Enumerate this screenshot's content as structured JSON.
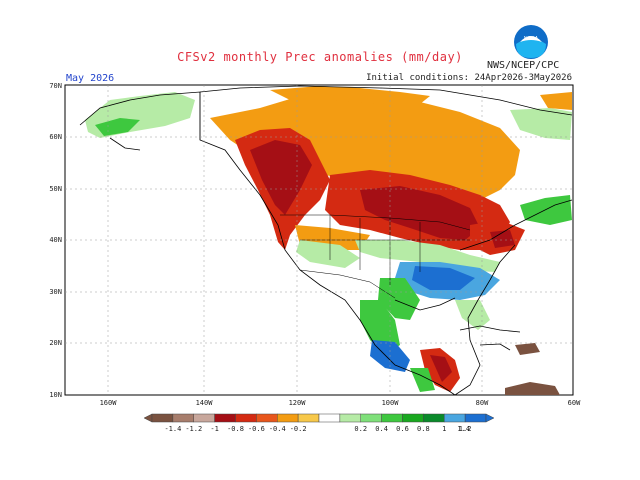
{
  "title": "CFSv2 monthly Prec anomalies (mm/day)",
  "month": "May 2026",
  "initial_conditions": "Initial conditions: 24Apr2026-3May2026",
  "agency": "NWS/NCEP/CPC",
  "logo_icon": "noaa-logo-icon",
  "lat_labels": [
    "70N",
    "60N",
    "50N",
    "40N",
    "30N",
    "20N",
    "10N"
  ],
  "lon_labels": [
    "160W",
    "140W",
    "120W",
    "100W",
    "80W",
    "60W"
  ],
  "colorbar": {
    "labels": [
      "-1.4",
      "-1.2",
      "-1",
      "-0.8",
      "-0.6",
      "-0.4",
      "-0.2",
      "0.2",
      "0.4",
      "0.6",
      "0.8",
      "1",
      "1.2",
      "1.4"
    ],
    "colors": [
      "#7a5240",
      "#a77d6c",
      "#c8a79c",
      "#a50f15",
      "#d42a12",
      "#e8561c",
      "#f39c12",
      "#f7c84a",
      "#ffffff",
      "#b6eba6",
      "#7fe07a",
      "#3ec83f",
      "#19a81f",
      "#0a8a2a",
      "#4aa6e0",
      "#1c6fd1"
    ]
  },
  "colors": {
    "dry_strong": "#a50f15",
    "dry_mid": "#d42a12",
    "dry_light": "#f39c12",
    "wet_light": "#b6eba6",
    "wet_mid": "#3ec83f",
    "wet_strong": "#1c6fd1",
    "wet_blue": "#4aa6e0"
  }
}
